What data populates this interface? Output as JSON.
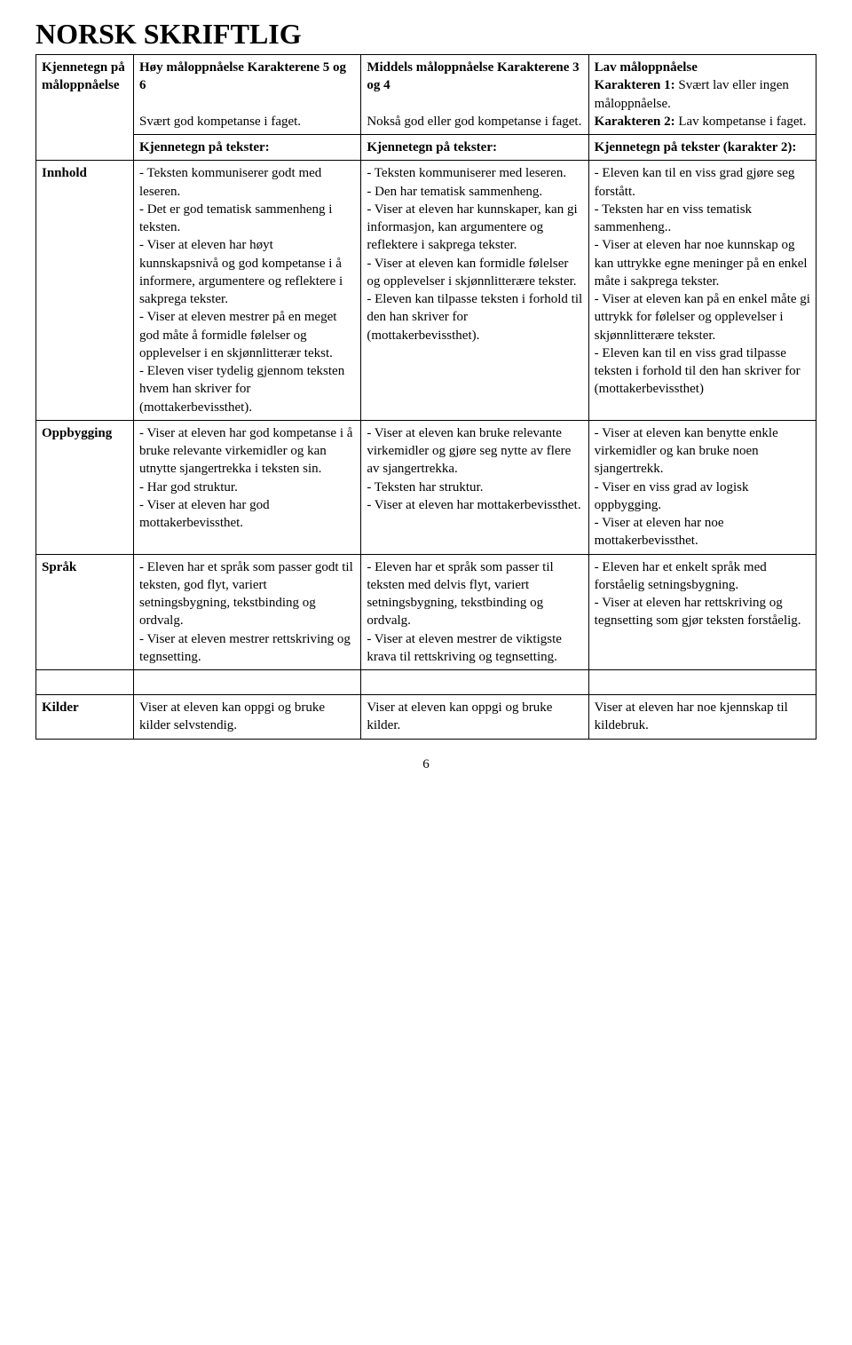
{
  "title": "NORSK SKRIFTLIG",
  "page_number": "6",
  "rows": {
    "r0": {
      "label": "Kjennetegn på måloppnåelse",
      "high_title": "Høy måloppnåelse Karakterene 5 og 6",
      "high_sub": "Svært god kompetanse i faget.",
      "mid_title": "Middels måloppnåelse Karakterene 3 og 4",
      "mid_sub": "Nokså god eller god kompetanse i faget.",
      "low_title": "Lav måloppnåelse",
      "low_k1_label": "Karakteren 1:",
      "low_k1_text": " Svært lav eller ingen måloppnåelse.",
      "low_k2_label": "Karakteren 2:",
      "low_k2_text": " Lav kompetanse i faget."
    },
    "r1": {
      "high": "Kjennetegn på tekster:",
      "mid": "Kjennetegn på tekster:",
      "low": "Kjennetegn på tekster (karakter 2):"
    },
    "r2": {
      "label": "Innhold",
      "high": "- Teksten kommuniserer godt med leseren.\n- Det er god tematisk sammenheng i teksten.\n- Viser at eleven har høyt kunnskapsnivå og god kompetanse i å informere, argumentere og reflektere i sakprega tekster.\n- Viser at eleven mestrer på en meget god måte å formidle følelser og opplevelser i en skjønnlitterær tekst.\n- Eleven viser tydelig gjennom teksten hvem han skriver for (mottakerbevissthet).",
      "mid": "- Teksten kommuniserer med leseren.\n- Den har tematisk sammenheng.\n- Viser at eleven har kunnskaper, kan gi informasjon, kan argumentere og reflektere i sakprega tekster.\n- Viser at eleven kan formidle følelser og opplevelser i skjønnlitterære tekster.\n- Eleven kan tilpasse teksten i forhold til den han skriver for (mottakerbevissthet).",
      "low": "- Eleven kan til en viss grad gjøre seg forstått.\n- Teksten har en viss tematisk sammenheng..\n- Viser at eleven har noe kunnskap og kan uttrykke egne meninger på en enkel måte i sakprega tekster.\n- Viser at eleven kan på en enkel måte gi  uttrykk for følelser og opplevelser i skjønnlitterære tekster.\n- Eleven kan til en viss grad tilpasse teksten i forhold til den han skriver for (mottakerbevissthet)"
    },
    "r3": {
      "label": "Oppbygging",
      "high": "- Viser at eleven har god kompetanse i å bruke relevante virkemidler og kan utnytte sjangertrekka i teksten sin.\n- Har god struktur.\n- Viser at eleven har god mottakerbevissthet.",
      "mid": "- Viser at eleven kan bruke relevante virkemidler og gjøre seg nytte av flere av sjangertrekka.\n- Teksten har struktur.\n- Viser at eleven har mottakerbevissthet.",
      "low": "- Viser at eleven kan benytte enkle virkemidler og kan bruke noen sjangertrekk.\n- Viser en viss grad av logisk oppbygging.\n- Viser at eleven har noe mottakerbevissthet."
    },
    "r4": {
      "label": "Språk",
      "high": "- Eleven har et språk som passer godt til teksten, god flyt, variert setningsbygning, tekstbinding og ordvalg.\n- Viser at eleven mestrer rettskriving og tegnsetting.",
      "mid": "- Eleven har et språk som passer til teksten med delvis flyt, variert setningsbygning, tekstbinding og ordvalg.\n- Viser at eleven mestrer de viktigste krava til rettskriving og tegnsetting.",
      "low": "- Eleven har et enkelt språk med forståelig setningsbygning.\n- Viser at eleven har rettskriving og tegnsetting som gjør teksten forståelig."
    },
    "r5": {
      "label": "",
      "high": "",
      "mid": "",
      "low": ""
    },
    "r6": {
      "label": "Kilder",
      "high": "Viser at eleven kan oppgi og bruke kilder selvstendig.",
      "mid": "Viser at eleven kan oppgi og bruke kilder.",
      "low": "Viser at eleven har noe kjennskap til kildebruk."
    }
  }
}
